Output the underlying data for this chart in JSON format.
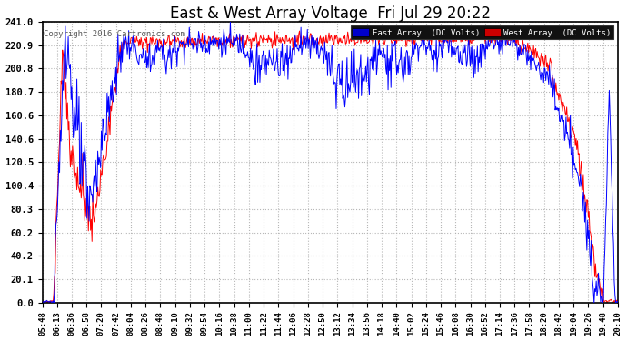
{
  "title": "East & West Array Voltage  Fri Jul 29 20:22",
  "copyright": "Copyright 2016 Cartronics.com",
  "legend_east": "East Array  (DC Volts)",
  "legend_west": "West Array  (DC Volts)",
  "east_color": "#0000ff",
  "west_color": "#ff0000",
  "bg_color": "#ffffff",
  "plot_bg": "#ffffff",
  "grid_color": "#b0b0b0",
  "yticks": [
    0.0,
    20.1,
    40.2,
    60.2,
    80.3,
    100.4,
    120.5,
    140.6,
    160.6,
    180.7,
    200.8,
    220.9,
    241.0
  ],
  "ymin": 0.0,
  "ymax": 241.0,
  "xlabel_fontsize": 6.5,
  "ylabel_fontsize": 7.5,
  "title_fontsize": 12,
  "copyright_fontsize": 6.5,
  "n_points": 800,
  "x_labels": [
    "05:48",
    "06:13",
    "06:36",
    "06:58",
    "07:20",
    "07:42",
    "08:04",
    "08:26",
    "08:48",
    "09:10",
    "09:32",
    "09:54",
    "10:16",
    "10:38",
    "11:00",
    "11:22",
    "11:44",
    "12:06",
    "12:28",
    "12:50",
    "13:12",
    "13:34",
    "13:56",
    "14:18",
    "14:40",
    "15:02",
    "15:24",
    "15:46",
    "16:08",
    "16:30",
    "16:52",
    "17:14",
    "17:36",
    "17:58",
    "18:20",
    "18:42",
    "19:04",
    "19:26",
    "19:48",
    "20:10"
  ]
}
